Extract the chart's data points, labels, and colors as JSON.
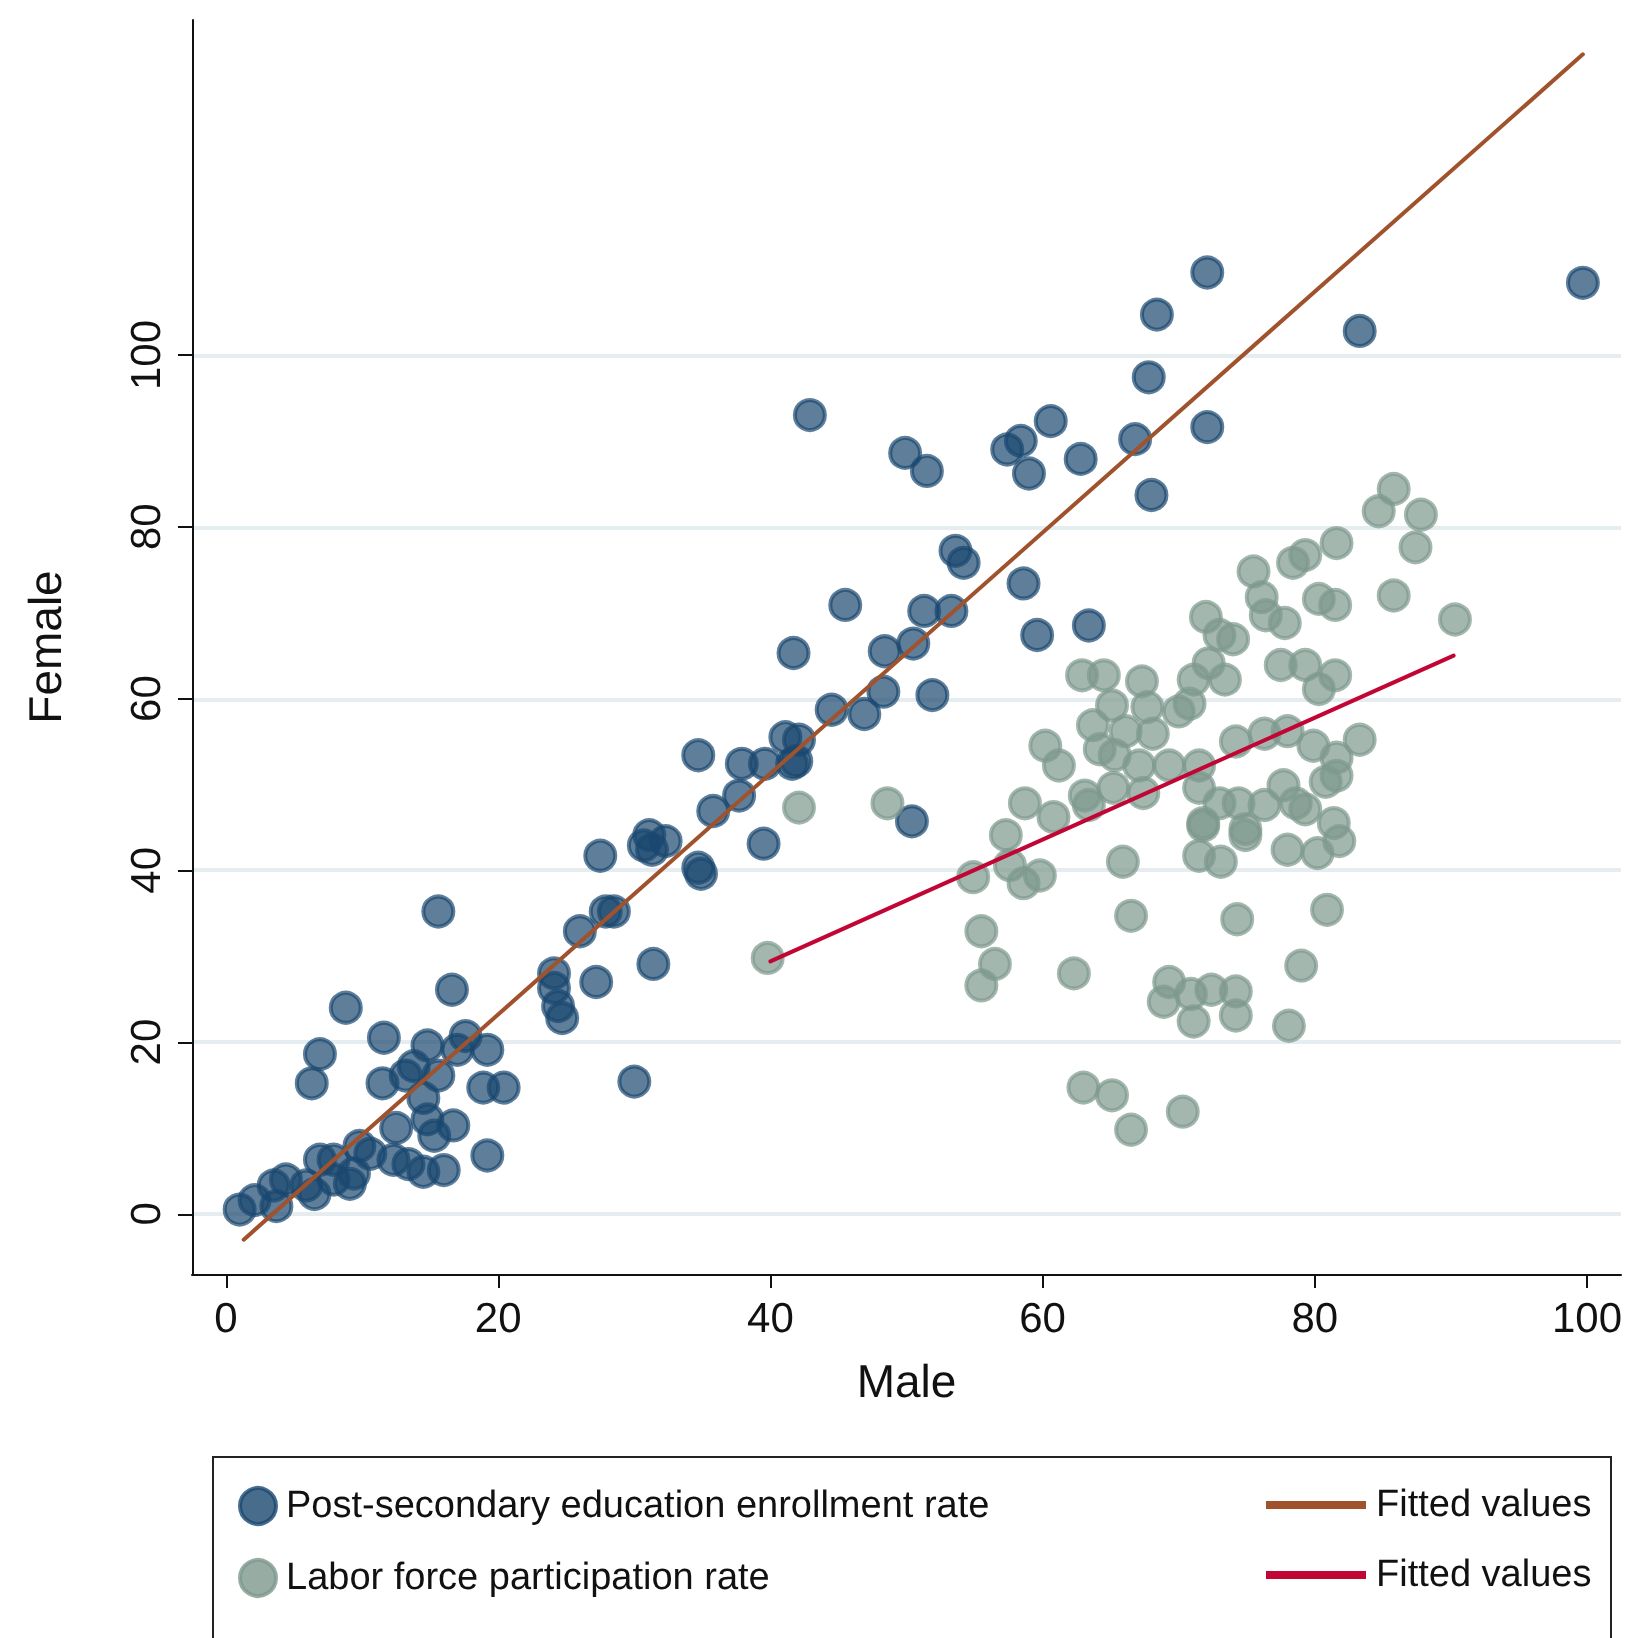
{
  "chart_data": {
    "type": "scatter",
    "xlabel": "Male",
    "ylabel": "Female",
    "xlim": [
      -2.5,
      102.5
    ],
    "ylim": [
      -7,
      139
    ],
    "xticks": [
      0,
      20,
      40,
      60,
      80,
      100
    ],
    "yticks": [
      0,
      20,
      40,
      60,
      80,
      100
    ],
    "grid": "y",
    "legend": "bottom",
    "marker": "circle",
    "series": [
      {
        "name": "Post-secondary education enrollment rate",
        "color": "#1a476f",
        "x": [
          42.9,
          49.9,
          51.5,
          57.4,
          58.4,
          60.6,
          59,
          62.8,
          66.8,
          68,
          68.4,
          67.8,
          72.1,
          72.1,
          83.3,
          99.7,
          41.7,
          45.5,
          44.5,
          46.9,
          48.4,
          48.3,
          50.5,
          51.3,
          53.3,
          53.6,
          54.2,
          51.9,
          58.6,
          59.6,
          63.4,
          50.4,
          34.7,
          35.8,
          37.9,
          39.6,
          41.6,
          42.1,
          41.9,
          41.1,
          39.5,
          37.7,
          34.7,
          34.9,
          32.3,
          30.7,
          31.1,
          31.3,
          31.4,
          30,
          27.5,
          27.9,
          28.5,
          26,
          27.2,
          24.1,
          24.4,
          24.7,
          24.1,
          15.6,
          8.8,
          11.6,
          6.9,
          6.3,
          16.6,
          14.8,
          17,
          17.6,
          19.2,
          11.5,
          13.2,
          13.8,
          15.6,
          14.5,
          14.8,
          15.3,
          16.7,
          12.5,
          19.2,
          18.9,
          20.4,
          16,
          14.5,
          13.4,
          12.3,
          9.8,
          10.6,
          9.4,
          7.9,
          5.9,
          4.4,
          3.5,
          3.7,
          2.1,
          1,
          6.9,
          6.5,
          7.9,
          9.1
        ],
        "values": [
          93,
          88.6,
          86.5,
          89,
          90,
          92.3,
          86.2,
          87.9,
          90.2,
          83.7,
          104.7,
          97.4,
          109.6,
          91.6,
          102.8,
          108.4,
          65.3,
          70.9,
          58.7,
          58.2,
          65.5,
          60.8,
          66.4,
          70.2,
          70.2,
          77.2,
          75.8,
          60.4,
          73.4,
          67.4,
          68.5,
          45.7,
          53.4,
          46.9,
          52.4,
          52.4,
          52.4,
          55.2,
          52.7,
          55.5,
          43.1,
          48.7,
          40.3,
          39.6,
          43.4,
          42.9,
          44.1,
          42.4,
          29.1,
          15.4,
          41.7,
          35.2,
          35.2,
          32.9,
          27,
          28,
          24.2,
          22.8,
          26.3,
          35.2,
          24,
          20.5,
          18.6,
          15.2,
          26.1,
          19.6,
          19.1,
          20.7,
          19.1,
          15.2,
          16.1,
          17.2,
          16.1,
          13.5,
          11,
          9.1,
          10.3,
          10,
          6.8,
          14.7,
          14.7,
          5.1,
          4.9,
          5.8,
          6.3,
          7.9,
          7,
          4.7,
          4,
          3.3,
          4,
          3.3,
          0.9,
          1.6,
          0.5,
          6.3,
          2.3,
          6.3,
          3.5
        ]
      },
      {
        "name": "Fitted values",
        "type": "line",
        "marker": "none",
        "color": "#a0522d",
        "x": [
          1.3,
          99.7
        ],
        "values": [
          -3,
          135
        ]
      },
      {
        "name": "Labor force participation rate",
        "color": "#7d998d",
        "x": [
          42.1,
          39.8,
          48.6,
          63,
          65.1,
          66.5,
          70.3,
          55.5,
          56.5,
          55.5,
          62.3,
          66.5,
          65.9,
          74.3,
          79,
          80.9,
          69.3,
          68.9,
          70.9,
          72.4,
          74.2,
          71.1,
          74.2,
          78.1,
          71.5,
          71.8,
          74.9,
          78,
          80.2,
          81.8,
          54.9,
          58.6,
          59.8,
          57.6,
          57.3,
          60.2,
          62.9,
          64.5,
          67.3,
          65.1,
          67.7,
          71.1,
          72.2,
          73.4,
          72,
          73,
          74,
          75.5,
          76.1,
          76.4,
          77.8,
          78.4,
          79.3,
          81.6,
          80.3,
          81.5,
          84.7,
          85.8,
          87.8,
          87.4,
          85.8,
          90.3,
          77.5,
          79.3,
          81.5,
          80.3,
          74.2,
          76.3,
          78,
          79.9,
          83.3,
          81.6,
          80.8,
          81.6,
          71.5,
          71.5,
          69.3,
          66.1,
          68.1,
          70,
          70.8,
          63.7,
          64.2,
          65.3,
          67.1,
          65.2,
          67.4,
          61.2,
          63.1,
          58.7,
          60.8,
          63.4,
          73,
          74.4,
          76.3,
          77.7,
          78.6,
          79.3,
          71.8,
          74.9,
          73.1,
          81.4
        ],
        "values": [
          47.3,
          29.8,
          47.8,
          14.7,
          13.8,
          9.8,
          11.9,
          32.9,
          29.1,
          26.6,
          28,
          34.7,
          41,
          34.3,
          28.9,
          35.4,
          27,
          24.7,
          25.6,
          26.1,
          25.9,
          22.4,
          23.1,
          21.9,
          41.7,
          45.5,
          44.1,
          42.4,
          42,
          43.4,
          39.2,
          38.5,
          39.4,
          40.6,
          44.1,
          54.5,
          62.7,
          62.7,
          62,
          59.2,
          59,
          62.2,
          64.1,
          62.2,
          69.5,
          67.4,
          66.9,
          74.8,
          71.8,
          69.7,
          68.8,
          75.8,
          76.7,
          78.1,
          71.6,
          70.9,
          81.8,
          84.4,
          81.4,
          77.6,
          72,
          69.2,
          63.9,
          63.9,
          62.7,
          61.1,
          55,
          55.9,
          56.2,
          54.5,
          55.2,
          53.1,
          50.3,
          51,
          52.2,
          49.6,
          52.2,
          56.2,
          55.9,
          58.5,
          59.4,
          56.9,
          54.1,
          53.4,
          52.2,
          49.6,
          49,
          52.2,
          48.7,
          47.8,
          46.2,
          47.6,
          47.8,
          47.8,
          47.6,
          49.9,
          47.8,
          47.1,
          45.2,
          44.8,
          41,
          45.5
        ]
      },
      {
        "name": "Fitted values",
        "type": "line",
        "marker": "none",
        "color": "#c10534",
        "x": [
          40,
          90.2
        ],
        "values": [
          29.4,
          65
        ]
      }
    ]
  }
}
